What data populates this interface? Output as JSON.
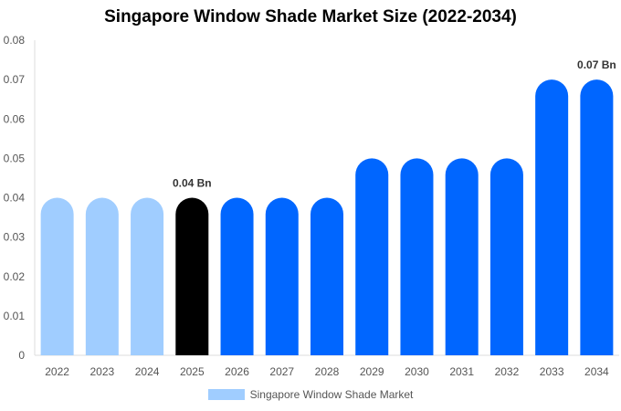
{
  "chart_data": {
    "type": "bar",
    "title": "Singapore Window Shade Market Size (2022-2034)",
    "xlabel": "",
    "ylabel": "",
    "categories": [
      "2022",
      "2023",
      "2024",
      "2025",
      "2026",
      "2027",
      "2028",
      "2029",
      "2030",
      "2031",
      "2032",
      "2033",
      "2034"
    ],
    "series": [
      {
        "name": "Singapore Window Shade Market",
        "values": [
          0.04,
          0.04,
          0.04,
          0.04,
          0.04,
          0.04,
          0.04,
          0.05,
          0.05,
          0.05,
          0.05,
          0.07,
          0.07
        ]
      }
    ],
    "ylim": [
      0,
      0.08
    ],
    "yticks": [
      "0",
      "0.01",
      "0.02",
      "0.03",
      "0.04",
      "0.05",
      "0.06",
      "0.07",
      "0.08"
    ],
    "data_labels": [
      {
        "category": "2025",
        "text": "0.04 Bn"
      },
      {
        "category": "2034",
        "text": "0.07 Bn"
      }
    ],
    "bar_colors": [
      "#a0cdff",
      "#a0cdff",
      "#a0cdff",
      "#000000",
      "#0066ff",
      "#0066ff",
      "#0066ff",
      "#0066ff",
      "#0066ff",
      "#0066ff",
      "#0066ff",
      "#0066ff",
      "#0066ff"
    ],
    "legend": {
      "position": "bottom",
      "swatch_color": "#a0cdff"
    },
    "grid": false
  }
}
